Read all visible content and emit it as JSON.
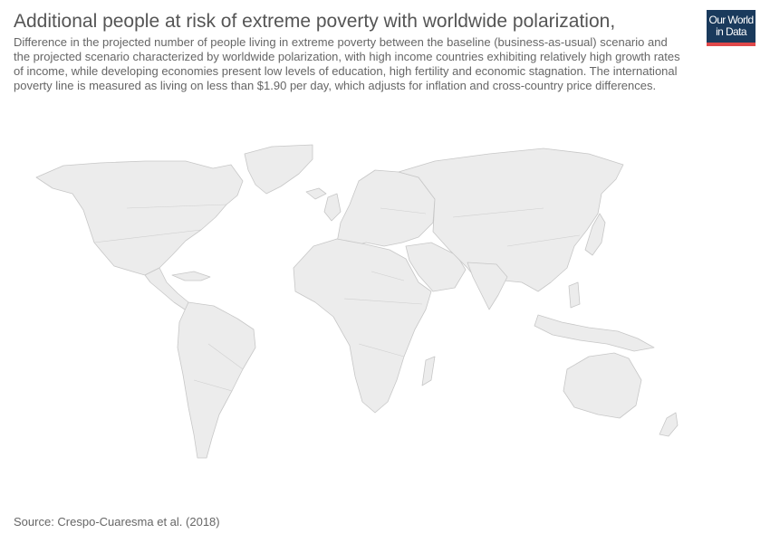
{
  "header": {
    "title": "Additional people at risk of extreme poverty with worldwide polarization,",
    "subtitle": "Difference in the projected number of people living in extreme poverty between the baseline (business-as-usual) scenario and the projected scenario characterized by worldwide polarization, with high income countries exhibiting relatively high growth rates of income, while developing economies present low levels of education, high fertility and economic stagnation. The international poverty line is measured as living on less than $1.90 per day, which adjusts for inflation and cross-country price differences."
  },
  "logo": {
    "line1": "Our World",
    "line2": "in Data",
    "background_color": "#1a3a5c",
    "accent_color": "#e0484a"
  },
  "map": {
    "land_color": "#ececec",
    "border_color": "#c7c7c7"
  },
  "footer": {
    "source": "Source: Crespo-Cuaresma et al. (2018)"
  }
}
